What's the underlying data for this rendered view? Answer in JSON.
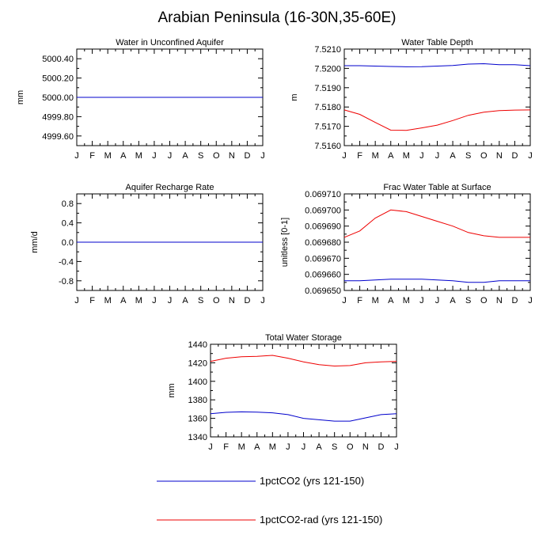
{
  "title": "Arabian Peninsula (16-30N,35-60E)",
  "colors": {
    "series1": "#0000cc",
    "series2": "#ee0000"
  },
  "legend": [
    {
      "label": "1pctCO2 (yrs 121-150)",
      "color": "#0000cc"
    },
    {
      "label": "1pctCO2-rad (yrs 121-150)",
      "color": "#ee0000"
    }
  ],
  "months": [
    "J",
    "F",
    "M",
    "A",
    "M",
    "J",
    "J",
    "A",
    "S",
    "O",
    "N",
    "D",
    "J"
  ],
  "chart_data": [
    {
      "type": "line",
      "title": "Water in Unconfined Aquifer",
      "ylabel": "mm",
      "ylim": [
        4999.5,
        5000.5
      ],
      "yticks": [
        4999.6,
        4999.8,
        5000.0,
        5000.2,
        5000.4
      ],
      "yticklabels": [
        "4999.60",
        "4999.80",
        "5000.00",
        "5000.20",
        "5000.40"
      ],
      "x": [
        "J",
        "F",
        "M",
        "A",
        "M",
        "J",
        "J",
        "A",
        "S",
        "O",
        "N",
        "D",
        "J"
      ],
      "series": [
        {
          "name": "1pctCO2 (yrs 121-150)",
          "values": [
            5000,
            5000,
            5000,
            5000,
            5000,
            5000,
            5000,
            5000,
            5000,
            5000,
            5000,
            5000,
            5000
          ]
        },
        {
          "name": "1pctCO2-rad (yrs 121-150)",
          "values": [
            5000,
            5000,
            5000,
            5000,
            5000,
            5000,
            5000,
            5000,
            5000,
            5000,
            5000,
            5000,
            5000
          ]
        }
      ]
    },
    {
      "type": "line",
      "title": "Water Table Depth",
      "ylabel": "m",
      "ylim": [
        7.516,
        7.521
      ],
      "yticks": [
        7.516,
        7.517,
        7.518,
        7.519,
        7.52,
        7.521
      ],
      "yticklabels": [
        "7.5160",
        "7.5170",
        "7.5180",
        "7.5190",
        "7.5200",
        "7.5210"
      ],
      "x": [
        "J",
        "F",
        "M",
        "A",
        "M",
        "J",
        "J",
        "A",
        "S",
        "O",
        "N",
        "D",
        "J"
      ],
      "series": [
        {
          "name": "1pctCO2 (yrs 121-150)",
          "values": [
            7.52014,
            7.52014,
            7.52012,
            7.5201,
            7.52008,
            7.52009,
            7.52012,
            7.52015,
            7.52022,
            7.52024,
            7.52019,
            7.52019,
            7.52014
          ]
        },
        {
          "name": "1pctCO2-rad (yrs 121-150)",
          "values": [
            7.51785,
            7.51762,
            7.5172,
            7.5168,
            7.51679,
            7.51692,
            7.51706,
            7.5173,
            7.51757,
            7.51773,
            7.51781,
            7.51784,
            7.51785
          ]
        }
      ]
    },
    {
      "type": "line",
      "title": "Aquifer Recharge Rate",
      "ylabel": "mm/d",
      "ylim": [
        -1,
        1
      ],
      "yticks": [
        -0.8,
        -0.4,
        0.0,
        0.4,
        0.8
      ],
      "yticklabels": [
        "-0.8",
        "-0.4",
        "0.0",
        "0.4",
        "0.8"
      ],
      "x": [
        "J",
        "F",
        "M",
        "A",
        "M",
        "J",
        "J",
        "A",
        "S",
        "O",
        "N",
        "D",
        "J"
      ],
      "series": [
        {
          "name": "1pctCO2 (yrs 121-150)",
          "values": [
            0,
            0,
            0,
            0,
            0,
            0,
            0,
            0,
            0,
            0,
            0,
            0,
            0
          ]
        },
        {
          "name": "1pctCO2-rad (yrs 121-150)",
          "values": [
            0,
            0,
            0,
            0,
            0,
            0,
            0,
            0,
            0,
            0,
            0,
            0,
            0
          ]
        }
      ]
    },
    {
      "type": "line",
      "title": "Frac Water Table at Surface",
      "ylabel": "unitless [0-1]",
      "ylim": [
        0.06965,
        0.06971
      ],
      "yticks": [
        0.06965,
        0.06966,
        0.06967,
        0.06968,
        0.06969,
        0.0697,
        0.06971
      ],
      "yticklabels": [
        "0.069650",
        "0.069660",
        "0.069670",
        "0.069680",
        "0.069690",
        "0.069700",
        "0.069710"
      ],
      "x": [
        "J",
        "F",
        "M",
        "A",
        "M",
        "J",
        "J",
        "A",
        "S",
        "O",
        "N",
        "D",
        "J"
      ],
      "series": [
        {
          "name": "1pctCO2 (yrs 121-150)",
          "values": [
            0.069656,
            0.069656,
            0.0696565,
            0.069657,
            0.069657,
            0.069657,
            0.0696565,
            0.069656,
            0.069655,
            0.069655,
            0.069656,
            0.069656,
            0.069656
          ]
        },
        {
          "name": "1pctCO2-rad (yrs 121-150)",
          "values": [
            0.069683,
            0.069687,
            0.069695,
            0.0697,
            0.069699,
            0.069696,
            0.069693,
            0.06969,
            0.069686,
            0.069684,
            0.069683,
            0.069683,
            0.069683
          ]
        }
      ]
    },
    {
      "type": "line",
      "title": "Total Water Storage",
      "ylabel": "mm",
      "ylim": [
        1340,
        1440
      ],
      "yticks": [
        1340,
        1360,
        1380,
        1400,
        1420,
        1440
      ],
      "yticklabels": [
        "1340",
        "1360",
        "1380",
        "1400",
        "1420",
        "1440"
      ],
      "x": [
        "J",
        "F",
        "M",
        "A",
        "M",
        "J",
        "J",
        "A",
        "S",
        "O",
        "N",
        "D",
        "J"
      ],
      "series": [
        {
          "name": "1pctCO2 (yrs 121-150)",
          "values": [
            1365,
            1366.5,
            1367,
            1366.7,
            1366,
            1364,
            1360,
            1358.5,
            1357,
            1357,
            1360.5,
            1364,
            1365
          ]
        },
        {
          "name": "1pctCO2-rad (yrs 121-150)",
          "values": [
            1421.5,
            1425,
            1426.5,
            1427,
            1428,
            1425,
            1421,
            1418,
            1416.5,
            1417,
            1420,
            1421,
            1421.5
          ]
        }
      ]
    }
  ]
}
